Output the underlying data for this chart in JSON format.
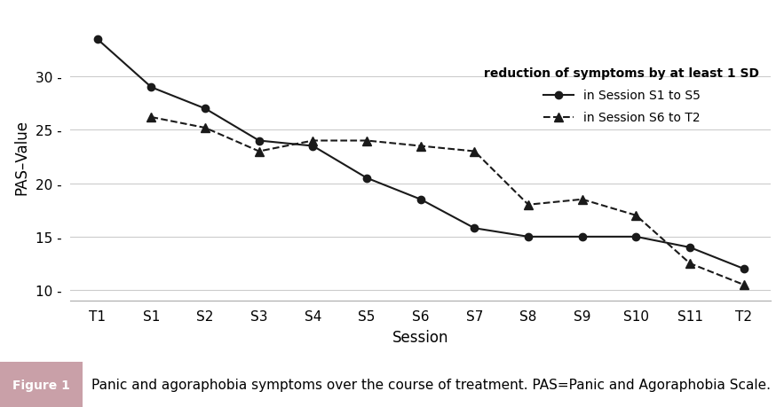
{
  "x_labels": [
    "T1",
    "S1",
    "S2",
    "S3",
    "S4",
    "S5",
    "S6",
    "S7",
    "S8",
    "S9",
    "S10",
    "S11",
    "T2"
  ],
  "line1_label": "in Session S1 to S5",
  "line2_label": "in Session S6 to T2",
  "legend_title": "reduction of symptoms by at least 1 SD",
  "line1_x": [
    0,
    1,
    2,
    3,
    4,
    5,
    6,
    7,
    8,
    9,
    10,
    11,
    12
  ],
  "line1_y": [
    33.5,
    29.0,
    27.0,
    24.0,
    23.5,
    20.5,
    18.5,
    15.8,
    15.0,
    15.0,
    15.0,
    14.0,
    12.0
  ],
  "line2_x": [
    0,
    1,
    2,
    3,
    4,
    5,
    6,
    7,
    8,
    9,
    10,
    11,
    12
  ],
  "line2_y": [
    null,
    26.2,
    25.2,
    23.0,
    24.0,
    24.0,
    23.5,
    23.0,
    18.0,
    18.5,
    17.0,
    12.5,
    10.5
  ],
  "xlabel": "Session",
  "ylabel": "PAS–Value",
  "ylim": [
    9,
    36
  ],
  "yticks": [
    10,
    15,
    20,
    25,
    30
  ],
  "line_color": "#1a1a1a",
  "grid_color": "#cccccc",
  "bg_color": "#ffffff",
  "figure_label": "Figure 1",
  "figure_label_bg": "#c9a0a8",
  "figure_caption": "Panic and agoraphobia symptoms over the course of treatment. PAS=Panic and Agoraphobia Scale.",
  "caption_fontsize": 11,
  "axis_fontsize": 11,
  "legend_title_fontsize": 10,
  "legend_fontsize": 10
}
